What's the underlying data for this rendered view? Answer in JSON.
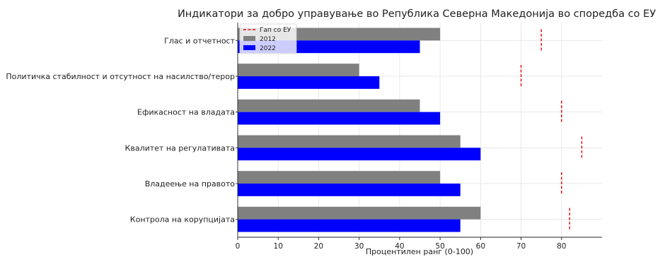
{
  "chart_data": {
    "type": "bar",
    "orientation": "horizontal",
    "title": "Индикатори за добро управување во Република Северна Македонија во споредба со ЕУ",
    "xlabel": "Процентилен ранг (0-100)",
    "ylabel": "",
    "xlim": [
      0,
      90
    ],
    "xticks": [
      0,
      10,
      20,
      30,
      40,
      50,
      60,
      70,
      80
    ],
    "grid": true,
    "legend_position": "top-left",
    "categories": [
      "Глас и отчетност",
      "Политичка стабилност и отсутност на насилство/терор",
      "Ефикасност на владата",
      "Квалитет на регулативата",
      "Владеење на правото",
      "Контрола на корупцијата"
    ],
    "series": [
      {
        "name": "2012",
        "color": "#808080",
        "values": [
          50,
          30,
          45,
          55,
          50,
          60
        ]
      },
      {
        "name": "2022",
        "color": "#0000ff",
        "values": [
          45,
          35,
          50,
          60,
          55,
          55
        ]
      }
    ],
    "reference": {
      "name": "Гап со ЕУ",
      "color": "#e8000b",
      "style": "dashed",
      "values": [
        75,
        70,
        80,
        85,
        80,
        82
      ]
    }
  }
}
